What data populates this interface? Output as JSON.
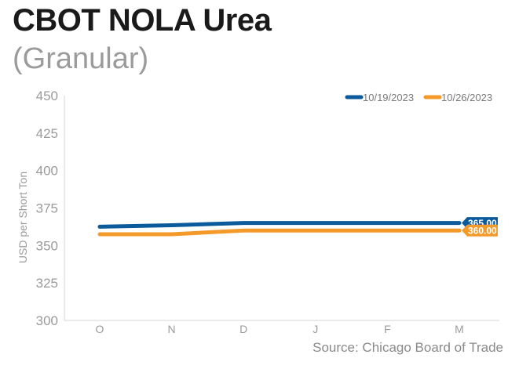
{
  "header": {
    "title": "CBOT NOLA Urea",
    "subtitle": "(Granular)"
  },
  "footer": {
    "source": "Source: Chicago Board of Trade"
  },
  "colors": {
    "series_blue": "#0a5a9c",
    "series_orange": "#f39a2a",
    "axis_text": "#9b9b9b",
    "axis_line": "#d6d6d6"
  },
  "chart_data": {
    "type": "line",
    "title": "CBOT NOLA Urea",
    "subtitle": "(Granular)",
    "xlabel": "",
    "ylabel": "USD per Short Ton",
    "categories": [
      "O",
      "N",
      "D",
      "J",
      "F",
      "M"
    ],
    "ylim": [
      300,
      450
    ],
    "yticks": [
      300,
      325,
      350,
      375,
      400,
      425,
      450
    ],
    "legend_position": "top-right",
    "grid": false,
    "series": [
      {
        "name": "10/19/2023",
        "color": "#0a5a9c",
        "values": [
          362.5,
          363.5,
          365,
          365,
          365,
          365
        ],
        "end_label": "365.00"
      },
      {
        "name": "10/26/2023",
        "color": "#f39a2a",
        "values": [
          357.5,
          357.5,
          360,
          360,
          360,
          360
        ],
        "end_label": "360.00"
      }
    ]
  }
}
